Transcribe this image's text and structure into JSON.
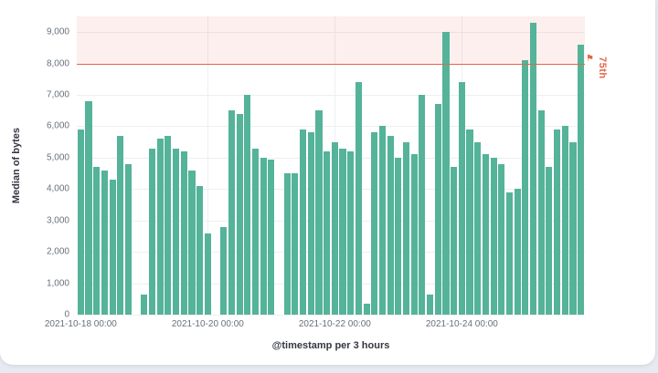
{
  "page": {
    "background": "#e7ebf1",
    "panel_background": "#ffffff"
  },
  "chart_data": {
    "type": "bar",
    "title": "",
    "xlabel": "@timestamp per 3 hours",
    "ylabel": "Median of bytes",
    "series_name": "Median of bytes",
    "ylim": [
      0,
      9500
    ],
    "grid": true,
    "colors": {
      "bar": "#54b399",
      "grid": "#eceff3",
      "tick_text": "#69707d",
      "axis_title_text": "#343741",
      "threshold_line": "#e3664a",
      "threshold_region": "rgba(227,102,74,0.10)"
    },
    "y_ticks": [
      {
        "value": 0,
        "label": "0"
      },
      {
        "value": 1000,
        "label": "1,000"
      },
      {
        "value": 2000,
        "label": "2,000"
      },
      {
        "value": 3000,
        "label": "3,000"
      },
      {
        "value": 4000,
        "label": "4,000"
      },
      {
        "value": 5000,
        "label": "5,000"
      },
      {
        "value": 6000,
        "label": "6,000"
      },
      {
        "value": 7000,
        "label": "7,000"
      },
      {
        "value": 8000,
        "label": "8,000"
      },
      {
        "value": 9000,
        "label": "9,000"
      }
    ],
    "x_ticks": [
      {
        "index": 0,
        "label": "2021-10-18 00:00"
      },
      {
        "index": 16,
        "label": "2021-10-20 00:00"
      },
      {
        "index": 32,
        "label": "2021-10-22 00:00"
      },
      {
        "index": 48,
        "label": "2021-10-24 00:00"
      }
    ],
    "vertical_gridline_indices": [
      16,
      32,
      48
    ],
    "threshold": {
      "value": 8000,
      "label": "75th",
      "flag_icon": "⚑",
      "region_from": 8000,
      "region_to": 9500
    },
    "categories": [
      "2021-10-18 00:00",
      "2021-10-18 03:00",
      "2021-10-18 06:00",
      "2021-10-18 09:00",
      "2021-10-18 12:00",
      "2021-10-18 15:00",
      "2021-10-18 18:00",
      "2021-10-18 21:00",
      "2021-10-19 00:00",
      "2021-10-19 03:00",
      "2021-10-19 06:00",
      "2021-10-19 09:00",
      "2021-10-19 12:00",
      "2021-10-19 15:00",
      "2021-10-19 18:00",
      "2021-10-19 21:00",
      "2021-10-20 00:00",
      "2021-10-20 03:00",
      "2021-10-20 06:00",
      "2021-10-20 09:00",
      "2021-10-20 12:00",
      "2021-10-20 15:00",
      "2021-10-20 18:00",
      "2021-10-20 21:00",
      "2021-10-21 00:00",
      "2021-10-21 03:00",
      "2021-10-21 06:00",
      "2021-10-21 09:00",
      "2021-10-21 12:00",
      "2021-10-21 15:00",
      "2021-10-21 18:00",
      "2021-10-21 21:00",
      "2021-10-22 00:00",
      "2021-10-22 03:00",
      "2021-10-22 06:00",
      "2021-10-22 09:00",
      "2021-10-22 12:00",
      "2021-10-22 15:00",
      "2021-10-22 18:00",
      "2021-10-22 21:00",
      "2021-10-23 00:00",
      "2021-10-23 03:00",
      "2021-10-23 06:00",
      "2021-10-23 09:00",
      "2021-10-23 12:00",
      "2021-10-23 15:00",
      "2021-10-23 18:00",
      "2021-10-23 21:00",
      "2021-10-24 00:00",
      "2021-10-24 03:00",
      "2021-10-24 06:00",
      "2021-10-24 09:00",
      "2021-10-24 12:00",
      "2021-10-24 15:00",
      "2021-10-24 18:00",
      "2021-10-24 21:00",
      "2021-10-25 00:00",
      "2021-10-25 03:00",
      "2021-10-25 06:00",
      "2021-10-25 09:00",
      "2021-10-25 12:00",
      "2021-10-25 15:00",
      "2021-10-25 18:00",
      "2021-10-25 21:00"
    ],
    "values": [
      5900,
      6800,
      4700,
      4600,
      4300,
      5700,
      4800,
      null,
      650,
      5300,
      5600,
      5700,
      5300,
      5200,
      4600,
      4100,
      2600,
      null,
      2800,
      6500,
      6400,
      7000,
      5300,
      5000,
      4950,
      null,
      4500,
      4500,
      5900,
      5800,
      6500,
      5200,
      5500,
      5300,
      5200,
      7400,
      350,
      5800,
      6000,
      5700,
      5000,
      5500,
      5100,
      7000,
      650,
      6700,
      9000,
      4700,
      7400,
      5900,
      5500,
      5100,
      5000,
      4800,
      3900,
      4000,
      8100,
      9300,
      6500,
      4700,
      5900,
      6000,
      5500,
      8600
    ]
  }
}
